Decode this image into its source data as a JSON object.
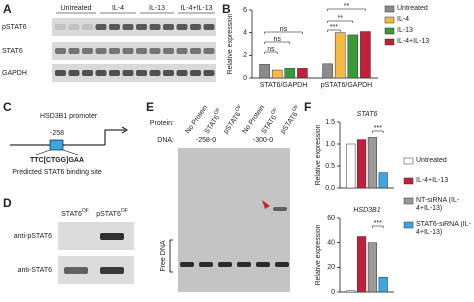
{
  "panel_labels": [
    "A",
    "B",
    "C",
    "D",
    "E",
    "F"
  ],
  "blot_a": {
    "conditions": [
      "Untreated",
      "IL-4",
      "IL-13",
      "IL-4+IL-13"
    ],
    "rows": [
      "pSTAT6",
      "STAT6",
      "GAPDH"
    ]
  },
  "promoter": {
    "title": "HSD3B1 promoter",
    "position": "-258",
    "motif": "TTC[CTGG]GAA",
    "caption": "Predicted STAT6 binding site"
  },
  "blot_d": {
    "lanes": [
      {
        "name": "STAT6",
        "sup": "OF"
      },
      {
        "name": "pSTAT6",
        "sup": "OF"
      }
    ],
    "rows": [
      "anti-pSTAT6",
      "anti-STAT6"
    ]
  },
  "gel_e": {
    "protein_label": "Protein:",
    "lanes": [
      {
        "name": "No Protein"
      },
      {
        "name": "STAT6",
        "sup": "OF"
      },
      {
        "name": "pSTAT6",
        "sup": "OF"
      },
      {
        "name": "No Protein"
      },
      {
        "name": "STAT6",
        "sup": "OF"
      },
      {
        "name": "pSTAT6",
        "sup": "OF"
      }
    ],
    "dna_label": "DNA:",
    "dna": [
      "-258-0",
      "-300-0"
    ],
    "free_dna": "Free DNA"
  },
  "chart_data": [
    {
      "type": "bar",
      "ylabel": "Relative expression",
      "categories": [
        "STAT6/GAPDH",
        "pSTAT6/GAPDH"
      ],
      "series": [
        {
          "name": "Untreated",
          "color": "#8c8c8c",
          "values": [
            1.2,
            1.25
          ]
        },
        {
          "name": "IL-4",
          "color": "#f5b942",
          "values": [
            0.7,
            4.0
          ]
        },
        {
          "name": "IL-13",
          "color": "#3a9a3a",
          "values": [
            0.85,
            3.8
          ]
        },
        {
          "name": "IL-4+IL-13",
          "color": "#c0213a",
          "values": [
            0.85,
            4.1
          ]
        }
      ],
      "ylim": [
        0,
        6
      ],
      "yticks": [
        0,
        2,
        4,
        6
      ],
      "annotations": [
        "ns",
        "ns",
        "ns",
        "***",
        "**",
        "**"
      ]
    },
    {
      "type": "bar",
      "title": "STAT6",
      "ylabel": "Relative expression",
      "series": [
        {
          "name": "Untreated",
          "color": "#ffffff",
          "values": [
            1.0
          ]
        },
        {
          "name": "IL-4+IL-13",
          "color": "#c0213a",
          "values": [
            1.1
          ]
        },
        {
          "name": "NT-siRNA (IL-4+IL-13)",
          "color": "#9a9a9a",
          "values": [
            1.15
          ]
        },
        {
          "name": "STAT6-siRNA (IL-4+IL-13)",
          "color": "#3aa8e0",
          "values": [
            0.35
          ]
        }
      ],
      "ylim": [
        0,
        1.5
      ],
      "yticks": [
        {
          "value": 0,
          "label": "0.0"
        },
        {
          "value": 0.5,
          "label": "0.5"
        },
        {
          "value": 1,
          "label": "1.0"
        },
        {
          "value": 1.5,
          "label": "1.5"
        }
      ],
      "annotations": [
        "***"
      ]
    },
    {
      "type": "bar",
      "title": "HSD3B1",
      "ylabel": "Relative expression",
      "series": [
        {
          "color": "#ffffff",
          "values": [
            1
          ]
        },
        {
          "color": "#c0213a",
          "values": [
            45
          ]
        },
        {
          "color": "#9a9a9a",
          "values": [
            40
          ]
        },
        {
          "color": "#3aa8e0",
          "values": [
            12
          ]
        }
      ],
      "ylim": [
        0,
        60
      ],
      "yticks": [
        0,
        20,
        40,
        60
      ],
      "annotations": [
        "***"
      ]
    }
  ]
}
